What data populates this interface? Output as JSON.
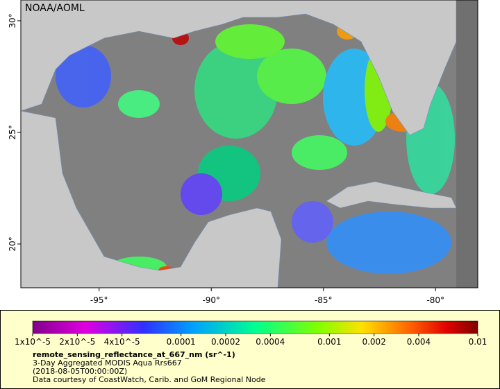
{
  "header": {
    "source": "NOAA/AOML"
  },
  "map": {
    "lat_range": [
      18.04,
      30.93
    ],
    "lon_range": [
      -98.49,
      -78.12
    ],
    "lat_ticks": [
      {
        "value": 30,
        "label": "30°"
      },
      {
        "value": 25,
        "label": "25°"
      },
      {
        "value": 20,
        "label": "20°"
      }
    ],
    "lon_ticks": [
      {
        "value": -95,
        "label": "-95°"
      },
      {
        "value": -90,
        "label": "-90°"
      },
      {
        "value": -85,
        "label": "-85°"
      },
      {
        "value": -80,
        "label": "-80°"
      }
    ]
  },
  "legend": {
    "colorbar": {
      "scale": "log",
      "range": [
        1e-05,
        0.01
      ],
      "ticks": [
        {
          "value": 1e-05,
          "label": "1x10^-5"
        },
        {
          "value": 2e-05,
          "label": "2x10^-5"
        },
        {
          "value": 4e-05,
          "label": "4x10^-5"
        },
        {
          "value": 0.0001,
          "label": "0.0001"
        },
        {
          "value": 0.0002,
          "label": "0.0002"
        },
        {
          "value": 0.0004,
          "label": "0.0004"
        },
        {
          "value": 0.001,
          "label": "0.001"
        },
        {
          "value": 0.002,
          "label": "0.002"
        },
        {
          "value": 0.004,
          "label": "0.004"
        },
        {
          "value": 0.01,
          "label": "0.01"
        }
      ]
    },
    "title": "remote_sensing_reflectance_at_667_nm (sr^-1)",
    "lines": [
      "3-Day Aggregated MODIS Aqua Rrs667",
      "(2018-08-05T00:00:00Z)",
      "Data courtesy of CoastWatch, Carib. and GoM Regional Node"
    ]
  }
}
